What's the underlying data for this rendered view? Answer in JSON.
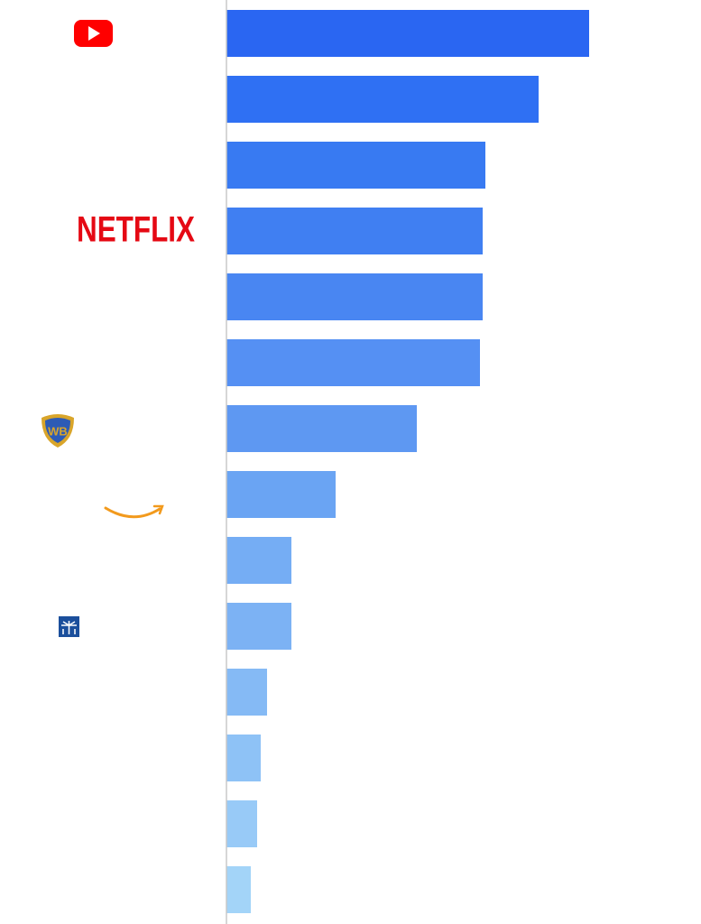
{
  "chart_data": {
    "type": "bar",
    "orientation": "horizontal",
    "categories": [
      null,
      null,
      null,
      "NETFLIX",
      null,
      null,
      null,
      null,
      null,
      null,
      null,
      null,
      null,
      null
    ],
    "values": [
      402,
      346,
      287,
      284,
      284,
      281,
      211,
      121,
      72,
      72,
      45,
      38,
      34,
      27
    ],
    "colors": [
      "#2a66f2",
      "#2f70f3",
      "#387af2",
      "#407ff2",
      "#4986f2",
      "#5590f3",
      "#5e98f2",
      "#6aa4f3",
      "#75adf4",
      "#7cb2f4",
      "#85baf5",
      "#8ec2f6",
      "#98caf7",
      "#a3d4f8"
    ],
    "xlim": [
      0,
      526
    ]
  }
}
